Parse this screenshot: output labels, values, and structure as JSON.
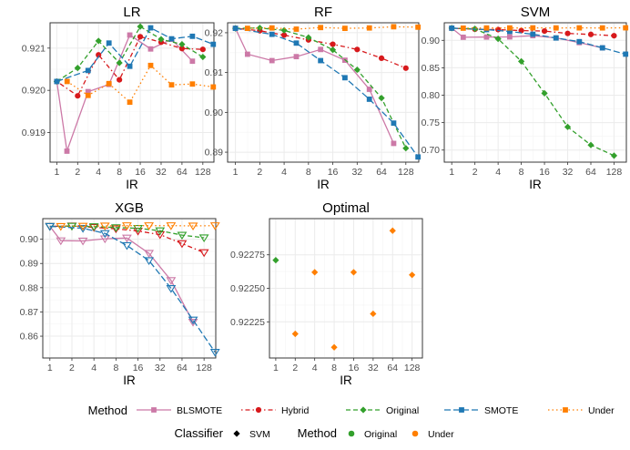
{
  "chart_data": [
    {
      "type": "line",
      "title": "LR",
      "xlabel": "IR",
      "ylabel": "",
      "x_scale": "log2",
      "xticks": [
        "1",
        "2",
        "4",
        "8",
        "16",
        "32",
        "64",
        "128"
      ],
      "yticks": [
        "0.919",
        "0.920",
        "0.921"
      ],
      "ylim": [
        0.9183,
        0.9216
      ],
      "series": [
        {
          "name": "BLSMOTE",
          "marker": "square",
          "x": [
            1,
            1.4,
            2.83,
            5.66,
            11.3,
            22.6,
            45.3,
            90.5
          ],
          "values": [
            0.92021,
            0.91856,
            0.91997,
            0.92014,
            0.92131,
            0.92098,
            0.92121,
            0.92069
          ]
        },
        {
          "name": "Hybrid",
          "marker": "circle",
          "x": [
            1,
            2,
            4,
            8,
            16,
            32,
            64,
            128
          ],
          "values": [
            0.92021,
            0.91987,
            0.92084,
            0.92025,
            0.92127,
            0.92114,
            0.92099,
            0.92097
          ]
        },
        {
          "name": "Original",
          "marker": "diamond",
          "x": [
            1,
            2,
            4,
            8,
            16,
            32,
            64,
            128
          ],
          "values": [
            0.92021,
            0.92053,
            0.92117,
            0.92065,
            0.92151,
            0.92121,
            0.92109,
            0.92079
          ]
        },
        {
          "name": "SMOTE",
          "marker": "square",
          "x": [
            1,
            2.83,
            5.66,
            11.3,
            22.6,
            45.3,
            90.5,
            181
          ],
          "values": [
            0.92021,
            0.92047,
            0.92112,
            0.92057,
            0.92148,
            0.92122,
            0.92128,
            0.92109
          ]
        },
        {
          "name": "Under",
          "marker": "square",
          "x": [
            1.41,
            2.83,
            5.66,
            11.3,
            22.6,
            45.3,
            90.5,
            181
          ],
          "values": [
            0.92021,
            0.91988,
            0.92016,
            0.91972,
            0.92059,
            0.92013,
            0.92015,
            0.92008
          ]
        }
      ]
    },
    {
      "type": "line",
      "title": "RF",
      "xlabel": "IR",
      "ylabel": "",
      "x_scale": "log2",
      "xticks": [
        "1",
        "2",
        "4",
        "8",
        "16",
        "32",
        "64",
        "128"
      ],
      "yticks": [
        "0.89",
        "0.90",
        "0.91",
        "0.92"
      ],
      "ylim": [
        0.8875,
        0.9225
      ],
      "series": [
        {
          "name": "BLSMOTE",
          "marker": "square",
          "x": [
            1,
            1.41,
            2.83,
            5.66,
            11.3,
            22.6,
            45.3,
            90.5
          ],
          "values": [
            0.9211,
            0.9146,
            0.913,
            0.914,
            0.9158,
            0.9131,
            0.9058,
            0.8922
          ]
        },
        {
          "name": "Hybrid",
          "marker": "circle",
          "x": [
            1,
            2,
            4,
            8,
            16,
            32,
            64,
            128
          ],
          "values": [
            0.9211,
            0.9205,
            0.9194,
            0.9182,
            0.9171,
            0.9158,
            0.9136,
            0.9111
          ]
        },
        {
          "name": "Original",
          "marker": "diamond",
          "x": [
            1,
            2,
            4,
            8,
            16,
            32,
            64,
            128
          ],
          "values": [
            0.9211,
            0.9212,
            0.9206,
            0.9188,
            0.9157,
            0.9107,
            0.9036,
            0.891
          ]
        },
        {
          "name": "SMOTE",
          "marker": "square",
          "x": [
            1,
            2.83,
            5.66,
            11.3,
            22.6,
            45.3,
            90.5,
            181
          ],
          "values": [
            0.9211,
            0.9196,
            0.9174,
            0.913,
            0.9087,
            0.9033,
            0.8973,
            0.8888
          ]
        },
        {
          "name": "Under",
          "marker": "square",
          "x": [
            1.41,
            2.83,
            5.66,
            11.3,
            22.6,
            45.3,
            90.5,
            181
          ],
          "values": [
            0.9211,
            0.9212,
            0.9209,
            0.9213,
            0.9211,
            0.9212,
            0.9215,
            0.9214
          ]
        }
      ]
    },
    {
      "type": "line",
      "title": "SVM",
      "xlabel": "IR",
      "ylabel": "",
      "x_scale": "log2",
      "xticks": [
        "1",
        "2",
        "4",
        "8",
        "16",
        "32",
        "64",
        "128"
      ],
      "yticks": [
        "0.70",
        "0.75",
        "0.80",
        "0.85",
        "0.90"
      ],
      "ylim": [
        0.678,
        0.932
      ],
      "series": [
        {
          "name": "BLSMOTE",
          "marker": "square",
          "x": [
            1,
            1.41,
            2.83,
            5.66,
            11.3,
            22.6,
            45.3,
            90.5
          ],
          "values": [
            0.9222,
            0.9056,
            0.906,
            0.9063,
            0.9085,
            0.9044,
            0.8958,
            0.8862
          ]
        },
        {
          "name": "Hybrid",
          "marker": "circle",
          "x": [
            1,
            2,
            4,
            8,
            16,
            32,
            64,
            128
          ],
          "values": [
            0.9222,
            0.9202,
            0.9196,
            0.9178,
            0.9169,
            0.9126,
            0.9108,
            0.9084
          ]
        },
        {
          "name": "Original",
          "marker": "diamond",
          "x": [
            1,
            2,
            4,
            8,
            16,
            32,
            64,
            128
          ],
          "values": [
            0.9222,
            0.9209,
            0.9027,
            0.8617,
            0.8035,
            0.7422,
            0.7092,
            0.6898
          ]
        },
        {
          "name": "SMOTE",
          "marker": "square",
          "x": [
            1,
            2.83,
            5.66,
            11.3,
            22.6,
            45.3,
            90.5,
            181
          ],
          "values": [
            0.9222,
            0.9195,
            0.9162,
            0.9111,
            0.9043,
            0.8976,
            0.8863,
            0.8748
          ]
        },
        {
          "name": "Under",
          "marker": "square",
          "x": [
            1.41,
            2.83,
            5.66,
            11.3,
            22.6,
            45.3,
            90.5,
            181
          ],
          "values": [
            0.9222,
            0.9225,
            0.9226,
            0.9227,
            0.9226,
            0.9227,
            0.9226,
            0.9228
          ]
        }
      ]
    },
    {
      "type": "line",
      "title": "XGB",
      "xlabel": "IR",
      "ylabel": "",
      "x_scale": "log2",
      "marker_note": "open triangles",
      "xticks": [
        "1",
        "2",
        "4",
        "8",
        "16",
        "32",
        "64",
        "128"
      ],
      "yticks": [
        "0.86",
        "0.87",
        "0.88",
        "0.89",
        "0.90"
      ],
      "ylim": [
        0.851,
        0.9085
      ],
      "series": [
        {
          "name": "BLSMOTE",
          "marker": "triangle",
          "x": [
            1,
            1.41,
            2.83,
            5.66,
            11.3,
            22.6,
            45.3,
            90.5
          ],
          "values": [
            0.9053,
            0.8994,
            0.8993,
            0.9002,
            0.9005,
            0.8942,
            0.883,
            0.8658
          ]
        },
        {
          "name": "Hybrid",
          "marker": "triangle",
          "x": [
            1,
            2,
            4,
            8,
            16,
            32,
            64,
            128
          ],
          "values": [
            0.9053,
            0.9055,
            0.9049,
            0.9043,
            0.9034,
            0.9019,
            0.8982,
            0.8945
          ]
        },
        {
          "name": "Original",
          "marker": "triangle",
          "x": [
            1,
            2,
            4,
            8,
            16,
            32,
            64,
            128
          ],
          "values": [
            0.9053,
            0.9054,
            0.9052,
            0.9048,
            0.9045,
            0.9035,
            0.9017,
            0.9006
          ]
        },
        {
          "name": "SMOTE",
          "marker": "triangle",
          "x": [
            1,
            2.83,
            5.66,
            11.3,
            22.6,
            45.3,
            90.5,
            181
          ],
          "values": [
            0.9053,
            0.9045,
            0.9024,
            0.8974,
            0.8912,
            0.8797,
            0.8667,
            0.8534
          ]
        },
        {
          "name": "Under",
          "marker": "triangle",
          "x": [
            1.41,
            2.83,
            5.66,
            11.3,
            22.6,
            45.3,
            90.5,
            181
          ],
          "values": [
            0.9053,
            0.9054,
            0.9055,
            0.9056,
            0.9056,
            0.9056,
            0.9055,
            0.9056
          ]
        }
      ]
    },
    {
      "type": "scatter",
      "title": "Optimal",
      "xlabel": "IR",
      "ylabel": "",
      "x_scale": "log2",
      "xticks": [
        "1",
        "2",
        "4",
        "8",
        "16",
        "32",
        "64",
        "128"
      ],
      "yticks": [
        "0.92225",
        "0.92250",
        "0.92275"
      ],
      "ylim": [
        0.92198,
        0.92302
      ],
      "series": [
        {
          "name": "Original",
          "marker": "diamond",
          "x": [
            1
          ],
          "values": [
            0.92271
          ]
        },
        {
          "name": "Under",
          "marker": "diamond",
          "x": [
            2,
            4,
            8,
            16,
            32,
            64,
            128
          ],
          "values": [
            0.92216,
            0.92262,
            0.92206,
            0.92262,
            0.92231,
            0.92293,
            0.9226
          ]
        }
      ]
    }
  ],
  "legend": {
    "method_title": "Method",
    "methods": [
      {
        "label": "BLSMOTE",
        "color": "#cc79a7",
        "dash": "solid"
      },
      {
        "label": "Hybrid",
        "color": "#d7191c",
        "dash": "dotdash"
      },
      {
        "label": "Original",
        "color": "#33a02c",
        "dash": "dashed"
      },
      {
        "label": "SMOTE",
        "color": "#1f78b4",
        "dash": "longdash"
      },
      {
        "label": "Under",
        "color": "#ff7f00",
        "dash": "dotted"
      }
    ],
    "classifier_title": "Classifier",
    "classifier_items": [
      {
        "label": "SVM"
      }
    ],
    "method2_title": "Method",
    "method2_items": [
      {
        "label": "Original",
        "color": "#33a02c"
      },
      {
        "label": "Under",
        "color": "#ff7f00"
      }
    ]
  }
}
